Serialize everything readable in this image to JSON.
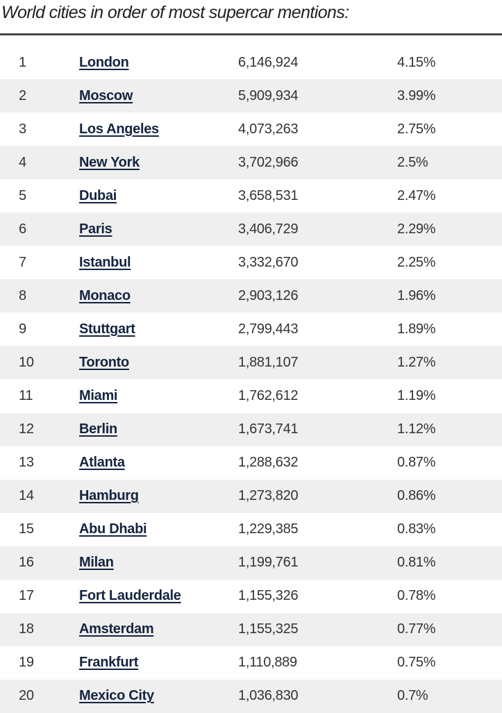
{
  "title": "World cities in order of most supercar mentions:",
  "rows": [
    {
      "rank": "1",
      "city": "London",
      "mentions": "6,146,924",
      "share": "4.15%"
    },
    {
      "rank": "2",
      "city": "Moscow",
      "mentions": "5,909,934",
      "share": "3.99%"
    },
    {
      "rank": "3",
      "city": "Los Angeles",
      "mentions": "4,073,263",
      "share": "2.75%"
    },
    {
      "rank": "4",
      "city": "New York",
      "mentions": "3,702,966",
      "share": "2.5%"
    },
    {
      "rank": "5",
      "city": "Dubai",
      "mentions": "3,658,531",
      "share": "2.47%"
    },
    {
      "rank": "6",
      "city": "Paris",
      "mentions": "3,406,729",
      "share": "2.29%"
    },
    {
      "rank": "7",
      "city": "Istanbul",
      "mentions": "3,332,670",
      "share": "2.25%"
    },
    {
      "rank": "8",
      "city": "Monaco",
      "mentions": "2,903,126",
      "share": "1.96%"
    },
    {
      "rank": "9",
      "city": "Stuttgart",
      "mentions": "2,799,443",
      "share": "1.89%"
    },
    {
      "rank": "10",
      "city": "Toronto",
      "mentions": "1,881,107",
      "share": "1.27%"
    },
    {
      "rank": "11",
      "city": "Miami",
      "mentions": "1,762,612",
      "share": "1.19%"
    },
    {
      "rank": "12",
      "city": "Berlin",
      "mentions": "1,673,741",
      "share": "1.12%"
    },
    {
      "rank": "13",
      "city": "Atlanta",
      "mentions": "1,288,632",
      "share": "0.87%"
    },
    {
      "rank": "14",
      "city": "Hamburg",
      "mentions": "1,273,820",
      "share": "0.86%"
    },
    {
      "rank": "15",
      "city": "Abu Dhabi",
      "mentions": "1,229,385",
      "share": "0.83%"
    },
    {
      "rank": "16",
      "city": "Milan",
      "mentions": "1,199,761",
      "share": "0.81%"
    },
    {
      "rank": "17",
      "city": "Fort Lauderdale",
      "mentions": "1,155,326",
      "share": "0.78%"
    },
    {
      "rank": "18",
      "city": "Amsterdam",
      "mentions": "1,155,325",
      "share": "0.77%"
    },
    {
      "rank": "19",
      "city": "Frankfurt",
      "mentions": "1,110,889",
      "share": "0.75%"
    },
    {
      "rank": "20",
      "city": "Mexico City",
      "mentions": "1,036,830",
      "share": "0.7%"
    }
  ]
}
